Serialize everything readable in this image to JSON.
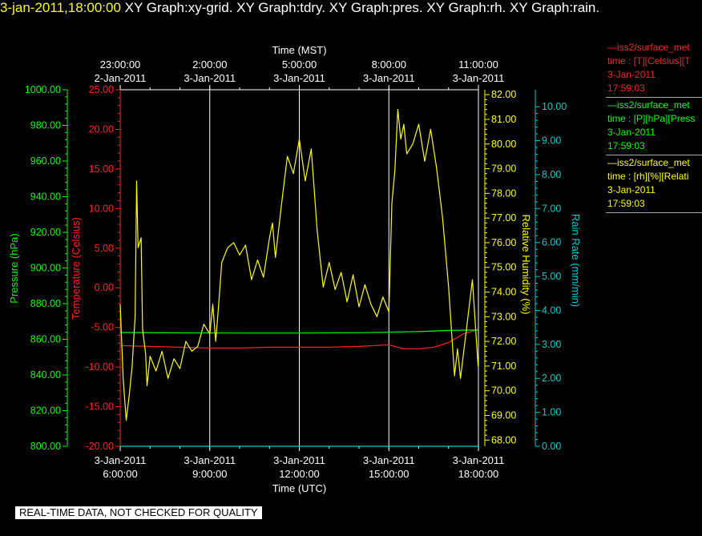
{
  "header": {
    "timestamp": "3-jan-2011,18:00:00",
    "graphs": "XY Graph:xy-grid.  XY Graph:tdry.  XY Graph:pres.  XY Graph:rh.  XY Graph:rain."
  },
  "notice": "REAL-TIME DATA, NOT CHECKED FOR QUALITY",
  "colors": {
    "temperature": "#ff2020",
    "pressure": "#00ff00",
    "rh": "#ffff00",
    "rain": "#00cccc",
    "grid": "#ffffff"
  },
  "legend": [
    {
      "color": "#ff2020",
      "line1": "—iss2/surface_met",
      "line2": "time : [T][Celsius][T",
      "line3": "3-Jan-2011",
      "line4": "17:59:03"
    },
    {
      "color": "#00ff00",
      "line1": "—iss2/surface_met",
      "line2": "time : [P][hPa][Press",
      "line3": "3-Jan-2011",
      "line4": "17:59:03"
    },
    {
      "color": "#ffff00",
      "line1": "—iss2/surface_met",
      "line2": "time : [rh][%][Relati",
      "line3": "3-Jan-2011",
      "line4": "17:59:03"
    }
  ],
  "chart_data": {
    "type": "line",
    "top_axis_title": "Time (MST)",
    "top_ticks": [
      {
        "time": "23:00:00",
        "date": "2-Jan-2011"
      },
      {
        "time": "2:00:00",
        "date": "3-Jan-2011"
      },
      {
        "time": "5:00:00",
        "date": "3-Jan-2011"
      },
      {
        "time": "8:00:00",
        "date": "3-Jan-2011"
      },
      {
        "time": "11:00:00",
        "date": "3-Jan-2011"
      }
    ],
    "bottom_axis_title": "Time (UTC)",
    "bottom_ticks": [
      {
        "date": "3-Jan-2011",
        "time": "6:00:00"
      },
      {
        "date": "3-Jan-2011",
        "time": "9:00:00"
      },
      {
        "date": "3-Jan-2011",
        "time": "12:00:00"
      },
      {
        "date": "3-Jan-2011",
        "time": "15:00:00"
      },
      {
        "date": "3-Jan-2011",
        "time": "18:00:00"
      }
    ],
    "x_range_utc_hours": [
      6,
      18
    ],
    "axes": {
      "pressure": {
        "label": "Pressure (hPa)",
        "range": [
          800,
          1000
        ],
        "ticks": [
          "800.00",
          "820.00",
          "840.00",
          "860.00",
          "880.00",
          "900.00",
          "920.00",
          "940.00",
          "960.00",
          "980.00",
          "1000.00"
        ]
      },
      "temperature": {
        "label": "Temperature (Celsius)",
        "range": [
          -20,
          25
        ],
        "ticks": [
          "-20.00",
          "-15.00",
          "-10.00",
          "-5.00",
          "0.00",
          "5.00",
          "10.00",
          "15.00",
          "20.00",
          "25.00"
        ]
      },
      "rh": {
        "label": "Relative Humidity (%)",
        "range": [
          67.75,
          82.2
        ],
        "ticks": [
          "68.00",
          "69.00",
          "70.00",
          "71.00",
          "72.00",
          "73.00",
          "74.00",
          "75.00",
          "76.00",
          "77.00",
          "78.00",
          "79.00",
          "80.00",
          "81.00",
          "82.00"
        ]
      },
      "rain": {
        "label": "Rain Rate (mm/min)",
        "range": [
          0,
          10.5
        ],
        "ticks": [
          "0.00",
          "1.00",
          "2.00",
          "3.00",
          "4.00",
          "5.00",
          "6.00",
          "7.00",
          "8.00",
          "9.00",
          "10.00"
        ]
      }
    },
    "series": [
      {
        "name": "Temperature",
        "axis": "temperature",
        "x": [
          6.0,
          7.0,
          8.0,
          9.0,
          10.0,
          11.0,
          12.0,
          13.0,
          14.0,
          15.0,
          15.5,
          16.0,
          16.5,
          17.0,
          17.5,
          17.99
        ],
        "y": [
          -7.3,
          -7.4,
          -7.5,
          -7.6,
          -7.6,
          -7.5,
          -7.5,
          -7.5,
          -7.4,
          -7.2,
          -7.7,
          -7.7,
          -7.5,
          -6.9,
          -5.8,
          -5.3
        ]
      },
      {
        "name": "Pressure",
        "axis": "pressure",
        "x": [
          6.0,
          8.0,
          10.0,
          12.0,
          14.0,
          16.0,
          17.0,
          17.99
        ],
        "y": [
          863.8,
          863.6,
          863.5,
          863.5,
          863.7,
          864.3,
          865.0,
          865.2
        ]
      },
      {
        "name": "Relative Humidity",
        "axis": "rh",
        "x": [
          6.0,
          6.1,
          6.2,
          6.3,
          6.4,
          6.5,
          6.55,
          6.6,
          6.7,
          6.75,
          6.85,
          6.9,
          7.0,
          7.2,
          7.4,
          7.6,
          7.8,
          8.0,
          8.2,
          8.4,
          8.6,
          8.8,
          9.0,
          9.1,
          9.2,
          9.3,
          9.4,
          9.6,
          9.8,
          10.0,
          10.2,
          10.4,
          10.6,
          10.8,
          11.0,
          11.1,
          11.2,
          11.4,
          11.6,
          11.8,
          12.0,
          12.2,
          12.4,
          12.6,
          12.8,
          13.0,
          13.2,
          13.4,
          13.6,
          13.8,
          14.0,
          14.2,
          14.4,
          14.6,
          14.8,
          15.0,
          15.1,
          15.2,
          15.3,
          15.4,
          15.5,
          15.6,
          15.8,
          16.0,
          16.2,
          16.4,
          16.6,
          16.8,
          17.0,
          17.2,
          17.3,
          17.4,
          17.6,
          17.8,
          17.99
        ],
        "y": [
          73.5,
          70.5,
          68.8,
          69.8,
          71.0,
          73.0,
          78.5,
          75.8,
          76.2,
          72.5,
          71.5,
          70.2,
          71.4,
          70.8,
          71.6,
          70.5,
          71.3,
          70.9,
          72.0,
          71.6,
          71.8,
          72.7,
          72.3,
          73.5,
          72.0,
          73.5,
          75.2,
          75.8,
          76.0,
          75.5,
          75.9,
          74.5,
          75.3,
          74.6,
          76.2,
          76.8,
          75.4,
          77.5,
          79.5,
          78.8,
          80.2,
          78.5,
          79.8,
          76.5,
          74.2,
          75.2,
          74.1,
          74.8,
          73.6,
          74.7,
          73.4,
          74.3,
          73.5,
          73.0,
          73.8,
          73.2,
          77.6,
          78.9,
          81.4,
          80.2,
          80.8,
          79.6,
          80.0,
          80.8,
          79.3,
          80.6,
          79.0,
          77.0,
          74.2,
          70.6,
          71.7,
          70.5,
          72.5,
          74.5,
          71.0
        ]
      },
      {
        "name": "Rain Rate",
        "axis": "rain",
        "x": [
          6.0,
          17.99
        ],
        "y": [
          0.0,
          0.0
        ]
      }
    ],
    "grid": true
  }
}
